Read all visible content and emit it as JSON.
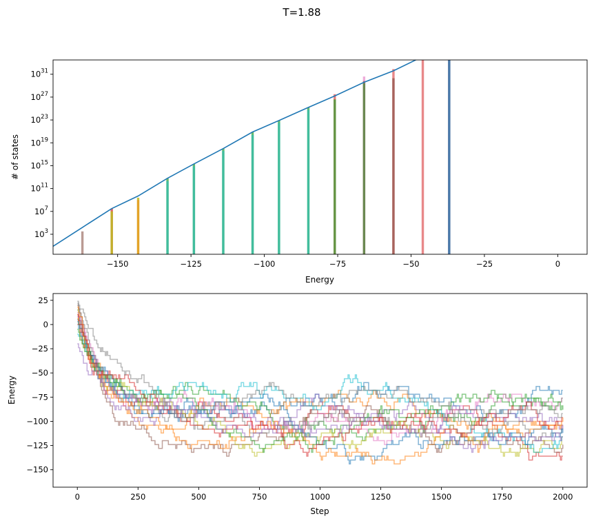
{
  "figure": {
    "suptitle": "T=1.88"
  },
  "chart_data": [
    {
      "type": "line",
      "subtype": "histogram-with-line",
      "title": "",
      "xlabel": "Energy",
      "ylabel": "# of states",
      "xlim": [
        -172,
        10
      ],
      "ylim_log10": [
        -0.5,
        33.5
      ],
      "yscale": "log",
      "grid": false,
      "xticks": [
        {
          "value": -150,
          "label": "−150"
        },
        {
          "value": -125,
          "label": "−125"
        },
        {
          "value": -100,
          "label": "−100"
        },
        {
          "value": -75,
          "label": "−75"
        },
        {
          "value": -50,
          "label": "−50"
        },
        {
          "value": -25,
          "label": "−25"
        },
        {
          "value": 0,
          "label": "0"
        }
      ],
      "yticks": [
        {
          "exp": 3,
          "base": "10",
          "sup": "3"
        },
        {
          "exp": 7,
          "base": "10",
          "sup": "7"
        },
        {
          "exp": 11,
          "base": "10",
          "sup": "11"
        },
        {
          "exp": 15,
          "base": "10",
          "sup": "15"
        },
        {
          "exp": 19,
          "base": "10",
          "sup": "19"
        },
        {
          "exp": 23,
          "base": "10",
          "sup": "23"
        },
        {
          "exp": 27,
          "base": "10",
          "sup": "27"
        },
        {
          "exp": 31,
          "base": "10",
          "sup": "31"
        }
      ],
      "density_line": {
        "color": "#1f77b4",
        "x": [
          -172,
          -162,
          -152,
          -143,
          -133,
          -124,
          -114,
          -104,
          -95,
          -85,
          -76,
          -66,
          -56,
          -46,
          -37
        ],
        "log10_y": [
          0.9,
          4.2,
          7.5,
          9.7,
          12.8,
          15.3,
          18.0,
          20.9,
          22.9,
          25.2,
          27.2,
          29.6,
          31.6,
          34.1,
          35.2
        ]
      },
      "bars": [
        {
          "x": -162,
          "log10_top": 3.5,
          "color": "#8c564b",
          "alpha": 0.6
        },
        {
          "x": -152,
          "log10_top": 7.5,
          "color": "#d62728",
          "alpha": 0.7
        },
        {
          "x": -152,
          "log10_top": 7.0,
          "color": "#bcbd22",
          "alpha": 0.85
        },
        {
          "x": -143,
          "log10_top": 9.4,
          "color": "#bcbd22",
          "alpha": 0.85
        },
        {
          "x": -143,
          "log10_top": 9.0,
          "color": "#ff7f0e",
          "alpha": 0.5
        },
        {
          "x": -133,
          "log10_top": 12.8,
          "color": "#2ca02c",
          "alpha": 0.7
        },
        {
          "x": -133,
          "log10_top": 12.3,
          "color": "#17becf",
          "alpha": 0.5
        },
        {
          "x": -124,
          "log10_top": 15.3,
          "color": "#2ca02c",
          "alpha": 0.7
        },
        {
          "x": -124,
          "log10_top": 14.9,
          "color": "#17becf",
          "alpha": 0.5
        },
        {
          "x": -114,
          "log10_top": 18.0,
          "color": "#2ca02c",
          "alpha": 0.7
        },
        {
          "x": -114,
          "log10_top": 17.6,
          "color": "#17becf",
          "alpha": 0.5
        },
        {
          "x": -104,
          "log10_top": 20.9,
          "color": "#2ca02c",
          "alpha": 0.7
        },
        {
          "x": -104,
          "log10_top": 20.4,
          "color": "#17becf",
          "alpha": 0.5
        },
        {
          "x": -95,
          "log10_top": 22.9,
          "color": "#2ca02c",
          "alpha": 0.7
        },
        {
          "x": -95,
          "log10_top": 22.5,
          "color": "#17becf",
          "alpha": 0.5
        },
        {
          "x": -85,
          "log10_top": 25.2,
          "color": "#2ca02c",
          "alpha": 0.7
        },
        {
          "x": -85,
          "log10_top": 24.8,
          "color": "#17becf",
          "alpha": 0.5
        },
        {
          "x": -76,
          "log10_top": 27.5,
          "color": "#d62728",
          "alpha": 0.6
        },
        {
          "x": -76,
          "log10_top": 26.6,
          "color": "#2ca02c",
          "alpha": 0.7
        },
        {
          "x": -66,
          "log10_top": 30.6,
          "color": "#e377c2",
          "alpha": 0.6
        },
        {
          "x": -66,
          "log10_top": 29.8,
          "color": "#8c564b",
          "alpha": 0.7
        },
        {
          "x": -66,
          "log10_top": 29.4,
          "color": "#2ca02c",
          "alpha": 0.5
        },
        {
          "x": -56,
          "log10_top": 31.9,
          "color": "#d62728",
          "alpha": 0.55
        },
        {
          "x": -56,
          "log10_top": 30.3,
          "color": "#8c564b",
          "alpha": 0.7
        },
        {
          "x": -46,
          "log10_top": 36.5,
          "color": "#d62728",
          "alpha": 0.55
        },
        {
          "x": -37,
          "log10_top": 37.4,
          "color": "#d62728",
          "alpha": 0.55
        },
        {
          "x": -37,
          "log10_top": 35.2,
          "color": "#1f77b4",
          "alpha": 0.8
        }
      ]
    },
    {
      "type": "line",
      "title": "",
      "xlabel": "Step",
      "ylabel": "Energy",
      "xlim": [
        -100,
        2100
      ],
      "ylim": [
        -168,
        32
      ],
      "grid": false,
      "xticks": [
        0,
        250,
        500,
        750,
        1000,
        1250,
        1500,
        1750,
        2000
      ],
      "yticks": [
        {
          "value": 25,
          "label": "25"
        },
        {
          "value": 0,
          "label": "0"
        },
        {
          "value": -25,
          "label": "−25"
        },
        {
          "value": -50,
          "label": "−50"
        },
        {
          "value": -75,
          "label": "−75"
        },
        {
          "value": -100,
          "label": "−100"
        },
        {
          "value": -125,
          "label": "−125"
        },
        {
          "value": -150,
          "label": "−150"
        }
      ],
      "steps": 2000,
      "series": [
        {
          "color": "#1f77b4",
          "start": 5,
          "target": -108,
          "noise": 14,
          "min": -150,
          "max": 20
        },
        {
          "color": "#ff7f0e",
          "start": 10,
          "target": -105,
          "noise": 15,
          "min": -150,
          "max": 20
        },
        {
          "color": "#2ca02c",
          "start": 15,
          "target": -97,
          "noise": 16,
          "min": -150,
          "max": 20
        },
        {
          "color": "#d62728",
          "start": 0,
          "target": -115,
          "noise": 18,
          "min": -158,
          "max": 20
        },
        {
          "color": "#9467bd",
          "start": 8,
          "target": -112,
          "noise": 16,
          "min": -150,
          "max": 20
        },
        {
          "color": "#8c564b",
          "start": 20,
          "target": -125,
          "noise": 18,
          "min": -156,
          "max": 24
        },
        {
          "color": "#e377c2",
          "start": 12,
          "target": -92,
          "noise": 15,
          "min": -150,
          "max": 20
        },
        {
          "color": "#7f7f7f",
          "start": 22,
          "target": -100,
          "noise": 17,
          "min": -155,
          "max": 24
        },
        {
          "color": "#bcbd22",
          "start": 6,
          "target": -120,
          "noise": 16,
          "min": -148,
          "max": 20
        },
        {
          "color": "#17becf",
          "start": -10,
          "target": -95,
          "noise": 18,
          "min": -150,
          "max": 20
        },
        {
          "color": "#1f77b4",
          "start": 3,
          "target": -100,
          "noise": 12,
          "min": -150,
          "max": 20
        },
        {
          "color": "#ff7f0e",
          "start": 18,
          "target": -110,
          "noise": 14,
          "min": -150,
          "max": 20
        },
        {
          "color": "#2ca02c",
          "start": -5,
          "target": -103,
          "noise": 13,
          "min": -150,
          "max": 20
        },
        {
          "color": "#d62728",
          "start": 10,
          "target": -98,
          "noise": 14,
          "min": -150,
          "max": 20
        },
        {
          "color": "#9467bd",
          "start": -20,
          "target": -118,
          "noise": 15,
          "min": -150,
          "max": 20
        },
        {
          "color": "#7f7f7f",
          "start": 24,
          "target": -88,
          "noise": 16,
          "min": -150,
          "max": 24
        }
      ]
    }
  ]
}
